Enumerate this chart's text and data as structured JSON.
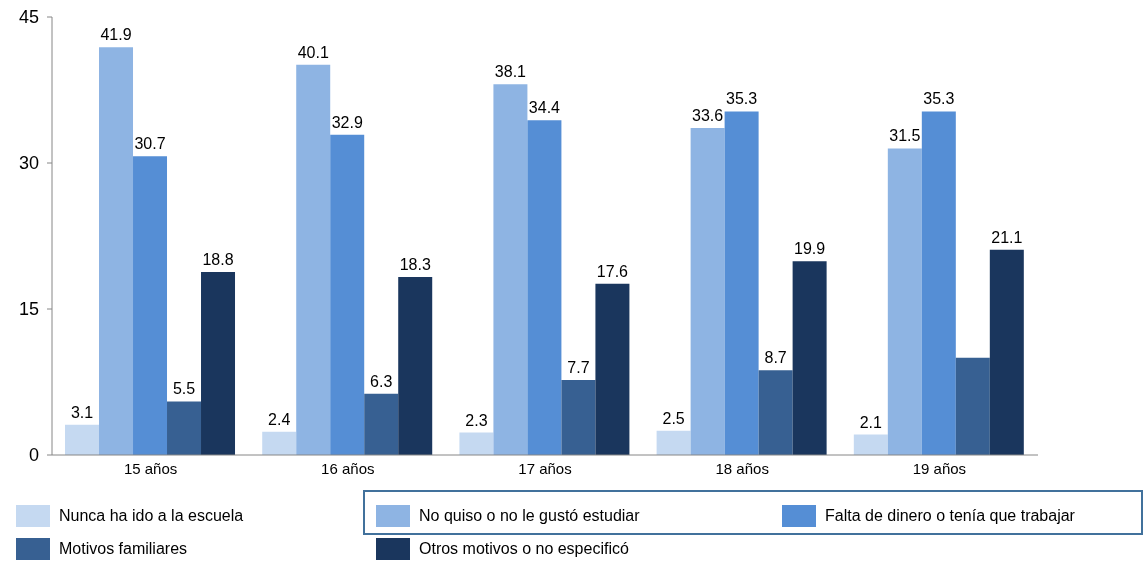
{
  "chart_data": {
    "type": "bar",
    "categories": [
      "15 años",
      "16 años",
      "17 años",
      "18 años",
      "19 años"
    ],
    "series": [
      {
        "name": "Nunca ha ido a la escuela",
        "color": "#c5d9f1",
        "values": [
          3.1,
          2.4,
          2.3,
          2.5,
          2.1
        ],
        "value_labels": [
          "3.1",
          "2.4",
          "2.3",
          "2.5",
          "2.1"
        ]
      },
      {
        "name": "No quiso o no le gustó estudiar",
        "color": "#8eb4e3",
        "values": [
          41.9,
          40.1,
          38.1,
          33.6,
          31.5
        ],
        "value_labels": [
          "41.9",
          "40.1",
          "38.1",
          "33.6",
          "31.5"
        ]
      },
      {
        "name": "Falta de dinero o tenía que trabajar",
        "color": "#558ed5",
        "values": [
          30.7,
          32.9,
          34.4,
          35.3,
          35.3
        ],
        "value_labels": [
          "30.7",
          "32.9",
          "34.4",
          "35.3",
          "35.3"
        ]
      },
      {
        "name": "Motivos familiares",
        "color": "#376092",
        "values": [
          5.5,
          6.3,
          7.7,
          8.7,
          10.0
        ],
        "value_labels": [
          "5.5",
          "6.3",
          "7.7",
          "8.7",
          null
        ]
      },
      {
        "name": "Otros motivos o no especificó",
        "color": "#1a365d",
        "values": [
          18.8,
          18.3,
          17.6,
          19.9,
          21.1
        ],
        "value_labels": [
          "18.8",
          "18.3",
          "17.6",
          "19.9",
          "21.1"
        ]
      }
    ],
    "ylim": [
      0,
      45
    ],
    "yticks": [
      0,
      15,
      30,
      45
    ],
    "legend": "bottom"
  }
}
